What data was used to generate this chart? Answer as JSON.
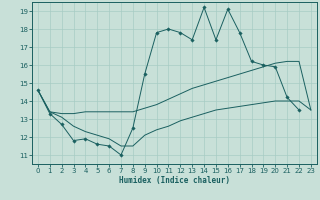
{
  "title": "",
  "xlabel": "Humidex (Indice chaleur)",
  "background_color": "#c8e0d8",
  "grid_color": "#a8ccc4",
  "line_color": "#1a6060",
  "xlim": [
    -0.5,
    23.5
  ],
  "ylim": [
    10.5,
    19.5
  ],
  "yticks": [
    11,
    12,
    13,
    14,
    15,
    16,
    17,
    18,
    19
  ],
  "xticks": [
    0,
    1,
    2,
    3,
    4,
    5,
    6,
    7,
    8,
    9,
    10,
    11,
    12,
    13,
    14,
    15,
    16,
    17,
    18,
    19,
    20,
    21,
    22,
    23
  ],
  "line1_x": [
    0,
    1,
    2,
    3,
    4,
    5,
    6,
    7,
    8,
    9,
    10,
    11,
    12,
    13,
    14,
    15,
    16,
    17,
    18,
    19,
    20,
    21,
    22
  ],
  "line1_y": [
    14.6,
    13.3,
    12.7,
    11.8,
    11.9,
    11.6,
    11.5,
    11.0,
    12.5,
    15.5,
    17.8,
    18.0,
    17.8,
    17.4,
    19.2,
    17.4,
    19.1,
    17.8,
    16.2,
    16.0,
    15.9,
    14.2,
    13.5
  ],
  "line2_x": [
    0,
    1,
    2,
    3,
    4,
    5,
    6,
    7,
    8,
    9,
    10,
    11,
    12,
    13,
    14,
    15,
    16,
    17,
    18,
    19,
    20,
    21,
    22,
    23
  ],
  "line2_y": [
    14.6,
    13.4,
    13.3,
    13.3,
    13.4,
    13.4,
    13.4,
    13.4,
    13.4,
    13.6,
    13.8,
    14.1,
    14.4,
    14.7,
    14.9,
    15.1,
    15.3,
    15.5,
    15.7,
    15.9,
    16.1,
    16.2,
    16.2,
    13.5
  ],
  "line3_x": [
    0,
    1,
    2,
    3,
    4,
    5,
    6,
    7,
    8,
    9,
    10,
    11,
    12,
    13,
    14,
    15,
    16,
    17,
    18,
    19,
    20,
    21,
    22,
    23
  ],
  "line3_y": [
    14.6,
    13.4,
    13.1,
    12.6,
    12.3,
    12.1,
    11.9,
    11.5,
    11.5,
    12.1,
    12.4,
    12.6,
    12.9,
    13.1,
    13.3,
    13.5,
    13.6,
    13.7,
    13.8,
    13.9,
    14.0,
    14.0,
    14.0,
    13.5
  ]
}
